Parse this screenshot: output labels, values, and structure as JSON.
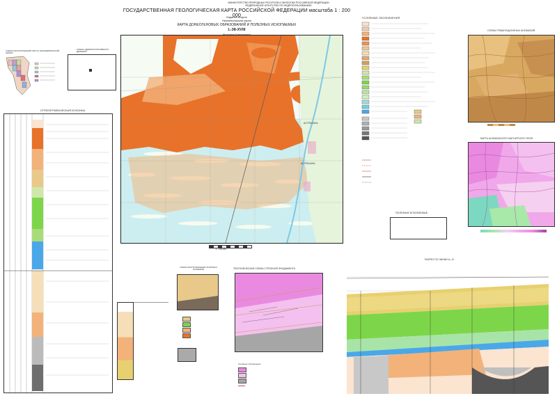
{
  "header": {
    "ministry_line1": "МИНИСТЕРСТВО ПРИРОДНЫХ РЕСУРСОВ И ЭКОЛОГИИ РОССИЙСКОЙ ФЕДЕРАЦИИ",
    "ministry_line2": "ФЕДЕРАЛЬНОЕ АГЕНТСТВО ПО НЕДРОПОЛЬЗОВАНИЮ",
    "main_title": "ГОСУДАРСТВЕННАЯ ГЕОЛОГИЧЕСКАЯ КАРТА РОССИЙСКОЙ ФЕДЕРАЦИИ масштаба 1 : 200 000",
    "edition": "Издание второе",
    "series": "Нижневолжская серия",
    "map_name": "КАРТА ДОНЕОГЕНОВЫХ ОБРАЗОВАНИЙ И ПОЛЕЗНЫХ ИСКОПАЕМЫХ",
    "sheet": "L-38-XVIII",
    "sheet_name": "(Красные Баррикады)"
  },
  "left": {
    "location_scheme_title": "СХЕМА РАСПОЛОЖЕНИЯ ЛИСТА НИЖНЕВОЛЖСКОЙ СЕРИИ",
    "admin_scheme_title": "СХЕМА АДМИНИСТРАТИВНОГО ДЕЛЕНИЯ",
    "strat_column_title": "СТРАТИГРАФИЧЕСКАЯ КОЛОНКА"
  },
  "map": {
    "city_label_1": "АСТРАХАНЬ",
    "city_label_2": "АСТРАХАНЬ",
    "scale_label": "1 : 200 000"
  },
  "legend": {
    "title": "УСЛОВНЫЕ ОБОЗНАЧЕНИЯ",
    "minerals_title": "ПОЛЕЗНЫЕ ИСКОПАЕМЫЕ"
  },
  "right": {
    "gravity_title": "СХЕМА ГРАВИТАЦИОННЫХ АНОМАЛИЙ",
    "magnetic_title": "КАРТА АНОМАЛЬНОГО МАГНИТНОГО ПОЛЯ",
    "section_title": "РАЗРЕЗ ПО ЛИНИИ А—Б",
    "tectonic_title": "ТЕКТОНИЧЕСКАЯ СХЕМА СТРОЕНИЯ ФУНДАМЕНТА",
    "tectonic_legend_title": "Условные обозначения",
    "small_scheme_title": "СХЕМА РАСПОЛОЖЕНИЯ ОПОРНЫХ РАЗРЕЗОВ"
  },
  "colors": {
    "orange": "#e8722a",
    "light_orange": "#f3b27a",
    "cyan": "#a8e4ec",
    "green": "#7dd64a",
    "blue": "#4aa8e8",
    "pink": "#e98ae0",
    "tan": "#e8c98a"
  }
}
